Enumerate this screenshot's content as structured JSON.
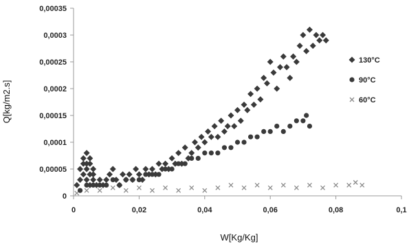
{
  "chart_data": {
    "type": "scatter",
    "xlabel": "W[Kg/Kg]",
    "ylabel": "Q[kg/m2.s]",
    "xlim": [
      0,
      0.1
    ],
    "ylim": [
      0,
      0.00035
    ],
    "grid": false,
    "legend_position": "right",
    "x_ticks": [
      "0",
      "0,02",
      "0,04",
      "0,06",
      "0,08",
      "0,1"
    ],
    "y_ticks": [
      "0",
      "0,00005",
      "0,0001",
      "0,00015",
      "0,0002",
      "0,00025",
      "0,0003",
      "0,00035"
    ],
    "series": [
      {
        "name": "130°C",
        "marker": "diamond",
        "color": "#3a3a3a",
        "x": [
          0.001,
          0.002,
          0.002,
          0.003,
          0.003,
          0.003,
          0.004,
          0.004,
          0.004,
          0.004,
          0.005,
          0.005,
          0.005,
          0.005,
          0.006,
          0.006,
          0.006,
          0.007,
          0.008,
          0.009,
          0.01,
          0.011,
          0.012,
          0.013,
          0.014,
          0.015,
          0.016,
          0.017,
          0.018,
          0.019,
          0.02,
          0.021,
          0.022,
          0.023,
          0.024,
          0.025,
          0.026,
          0.027,
          0.028,
          0.029,
          0.03,
          0.031,
          0.032,
          0.033,
          0.034,
          0.035,
          0.036,
          0.037,
          0.038,
          0.039,
          0.04,
          0.041,
          0.042,
          0.043,
          0.044,
          0.045,
          0.046,
          0.047,
          0.048,
          0.049,
          0.05,
          0.051,
          0.052,
          0.053,
          0.054,
          0.055,
          0.056,
          0.057,
          0.058,
          0.059,
          0.06,
          0.061,
          0.062,
          0.063,
          0.064,
          0.065,
          0.066,
          0.067,
          0.068,
          0.069,
          0.07,
          0.071,
          0.072,
          0.073,
          0.074,
          0.075,
          0.076,
          0.077
        ],
        "y": [
          2e-05,
          3e-05,
          5e-05,
          6e-05,
          4e-05,
          7e-05,
          8e-05,
          5e-05,
          3e-05,
          6e-05,
          7e-05,
          4e-05,
          6e-05,
          2e-05,
          5e-05,
          3e-05,
          4e-05,
          2e-05,
          3e-05,
          2e-05,
          3e-05,
          4e-05,
          5e-05,
          3e-05,
          2e-05,
          4e-05,
          3e-05,
          4e-05,
          3e-05,
          5e-05,
          4e-05,
          3e-05,
          5e-05,
          4e-05,
          5e-05,
          4e-05,
          6e-05,
          5e-05,
          6e-05,
          5e-05,
          7e-05,
          6e-05,
          8e-05,
          6e-05,
          9e-05,
          7e-05,
          8e-05,
          0.0001,
          9e-05,
          0.00011,
          0.0001,
          0.00012,
          0.00011,
          0.00013,
          0.00011,
          0.00014,
          0.00012,
          0.00013,
          0.00015,
          0.00013,
          0.00016,
          0.00014,
          0.00017,
          0.00016,
          0.00019,
          0.00017,
          0.0002,
          0.00018,
          0.00022,
          0.00021,
          0.00025,
          0.00023,
          0.0002,
          0.00024,
          0.00026,
          0.00024,
          0.00022,
          0.00026,
          0.00025,
          0.00028,
          0.0003,
          0.00027,
          0.00031,
          0.00028,
          0.0003,
          0.00029,
          0.0003,
          0.00029
        ]
      },
      {
        "name": "90°C",
        "marker": "circle",
        "color": "#3a3a3a",
        "x": [
          0.002,
          0.004,
          0.006,
          0.008,
          0.01,
          0.012,
          0.014,
          0.016,
          0.018,
          0.02,
          0.022,
          0.024,
          0.026,
          0.028,
          0.03,
          0.032,
          0.034,
          0.036,
          0.038,
          0.04,
          0.042,
          0.044,
          0.046,
          0.048,
          0.05,
          0.052,
          0.054,
          0.056,
          0.058,
          0.06,
          0.062,
          0.064,
          0.066,
          0.068,
          0.07,
          0.071,
          0.072
        ],
        "y": [
          1e-05,
          2e-05,
          2e-05,
          2e-05,
          2e-05,
          3e-05,
          2e-05,
          3e-05,
          3e-05,
          3e-05,
          4e-05,
          4e-05,
          4e-05,
          5e-05,
          5e-05,
          6e-05,
          6e-05,
          7e-05,
          7e-05,
          8e-05,
          8e-05,
          8e-05,
          9e-05,
          9e-05,
          0.0001,
          0.0001,
          0.00011,
          0.00011,
          0.00012,
          0.00012,
          0.00013,
          0.00012,
          0.00013,
          0.00014,
          0.00014,
          0.00015,
          0.00013
        ]
      },
      {
        "name": "60°C",
        "marker": "x",
        "color": "#8a8a8a",
        "x": [
          0.001,
          0.004,
          0.008,
          0.012,
          0.016,
          0.02,
          0.024,
          0.028,
          0.032,
          0.036,
          0.04,
          0.044,
          0.048,
          0.052,
          0.056,
          0.06,
          0.064,
          0.068,
          0.072,
          0.076,
          0.08,
          0.084,
          0.086,
          0.088
        ],
        "y": [
          5e-06,
          1e-05,
          1e-05,
          1.5e-05,
          1e-05,
          1.5e-05,
          1e-05,
          1.5e-05,
          1e-05,
          1.5e-05,
          1e-05,
          1.5e-05,
          2e-05,
          1.5e-05,
          2e-05,
          1.5e-05,
          2e-05,
          1.5e-05,
          2e-05,
          1.5e-05,
          2e-05,
          2e-05,
          2.5e-05,
          2e-05
        ]
      }
    ]
  }
}
